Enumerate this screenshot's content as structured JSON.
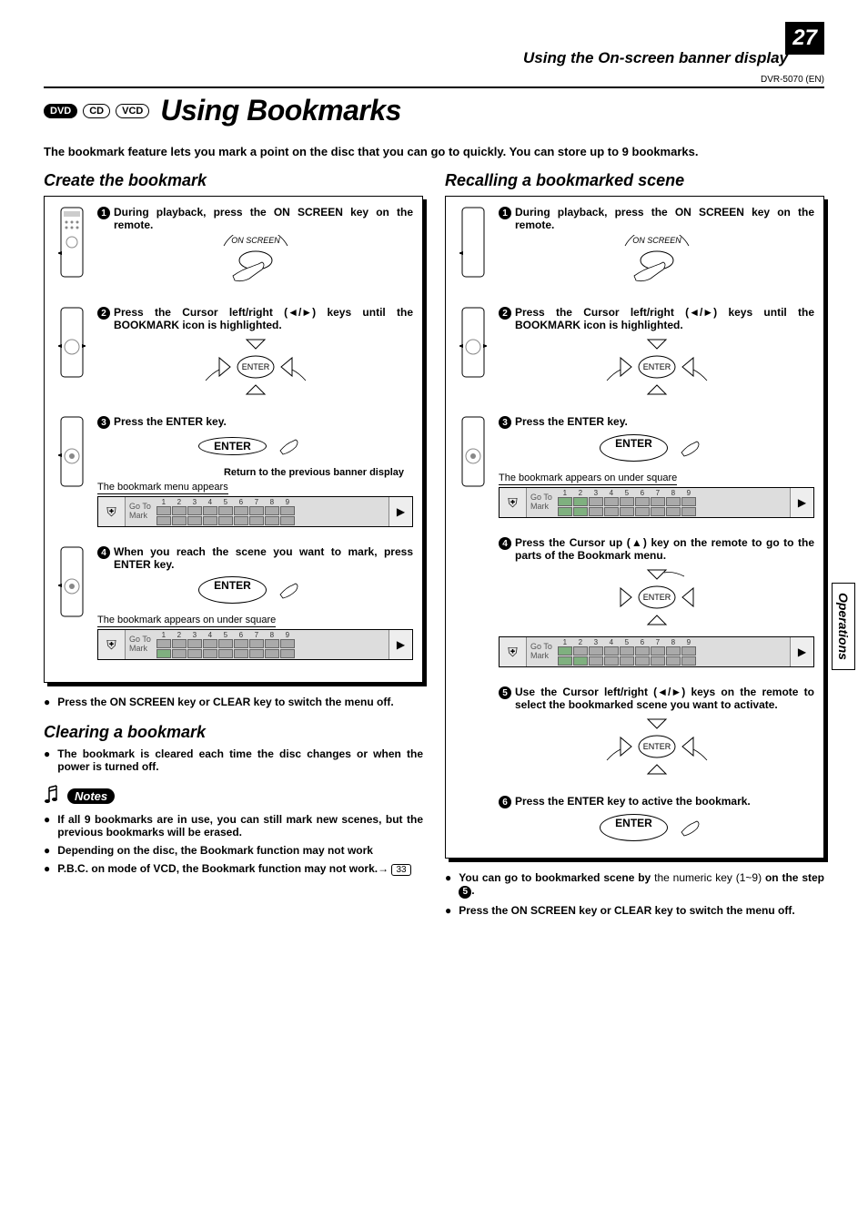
{
  "page_number": "27",
  "header_title": "Using the On-screen banner display",
  "model": "DVR-5070 (EN)",
  "side_tab": "Operations",
  "badges": {
    "dvd": "DVD",
    "cd": "CD",
    "vcd": "VCD"
  },
  "main_title": "Using Bookmarks",
  "intro": "The bookmark feature lets you mark a point on the disc that you can go to quickly. You can store up to 9 bookmarks.",
  "enter": "ENTER",
  "on_screen_label": "ON SCREEN",
  "bm_label_top": "Go To",
  "bm_label_bot": "Mark",
  "bm_numbers": [
    "1",
    "2",
    "3",
    "4",
    "5",
    "6",
    "7",
    "8",
    "9"
  ],
  "left": {
    "section1_title": "Create the bookmark",
    "step1": "During playback, press  the ON SCREEN key on the remote.",
    "step2": "Press the Cursor left/right (◄/►) keys  until the BOOKMARK icon is highlighted.",
    "step3": "Press the ENTER key.",
    "step3_caption_right": "Return to the previous banner display",
    "step3_caption": "The bookmark menu appears",
    "step4": "When you reach the scene you want to mark, press ENTER key.",
    "step4_caption": "The bookmark appears on under square",
    "after1": "Press the ON SCREEN key or CLEAR key to switch the menu off.",
    "section2_title": "Clearing a bookmark",
    "clearing1": "The bookmark is cleared each time the disc changes or when the power is turned off.",
    "notes_label": "Notes",
    "note1": "If all 9 bookmarks are in use, you can still mark new scenes, but the previous bookmarks will be erased.",
    "note2": "Depending on the disc, the Bookmark function may not work",
    "note3a": "P.B.C. on mode of VCD, the ",
    "note3b": "Bookmark function may not work",
    "note3c_ref": "33"
  },
  "right": {
    "section_title": "Recalling a bookmarked scene",
    "step1": "During playback, press  the ON SCREEN key on the remote.",
    "step2": "Press the Cursor left/right (◄/►) keys  until the BOOKMARK icon is highlighted.",
    "step3": "Press the ENTER key.",
    "step3_caption": "The bookmark appears on under square",
    "step4": "Press the Cursor up (▲) key on the remote to go to the parts of the Bookmark menu.",
    "step5": "Use the Cursor left/right (◄/►) keys on the remote to select the bookmarked scene you want to activate.",
    "step6": "Press the ENTER key to active the bookmark.",
    "after1a": "You can go to bookmarked scene by ",
    "after1b": "the numeric key (1~9) ",
    "after1c": "on the step ",
    "after1d": ".",
    "after2": "Press the ON SCREEN key or CLEAR key to switch the menu off."
  }
}
